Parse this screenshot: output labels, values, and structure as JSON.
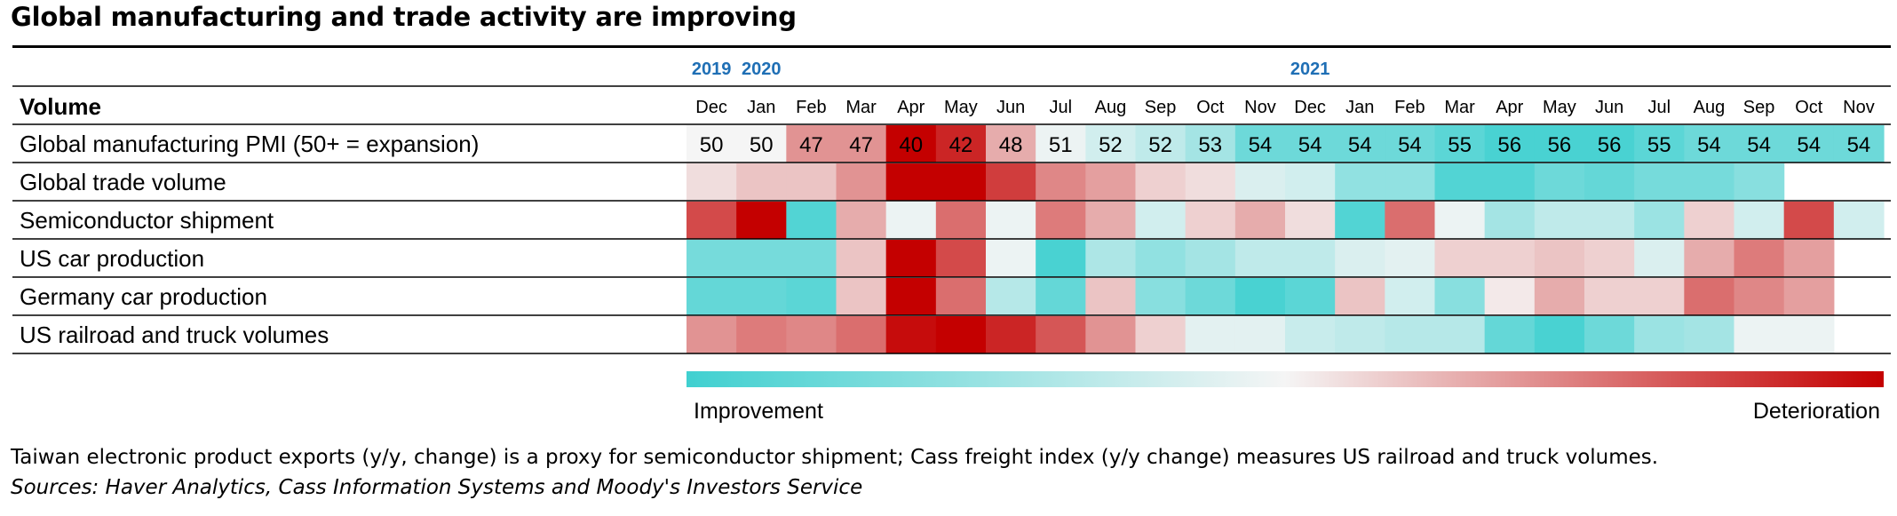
{
  "title": "Global manufacturing and trade activity are improving",
  "note": "Taiwan electronic product exports (y/y, change) is a proxy for semiconductor shipment; Cass freight index (y/y change) measures US railroad and truck volumes.",
  "sources": "Sources: Haver Analytics, Cass Information Systems and Moody's Investors Service",
  "colors": {
    "improvement": "#40d0d0",
    "neutral": "#f5f5f5",
    "deterioration": "#c40000",
    "rule": "#000000",
    "year_label": "#1f6fb5"
  },
  "chart_data": {
    "type": "heatmap",
    "row_header": "Volume",
    "years": [
      {
        "label": "2019",
        "start_index": 0
      },
      {
        "label": "2020",
        "start_index": 1
      },
      {
        "label": "2021",
        "start_index": 12
      }
    ],
    "months": [
      "Dec",
      "Jan",
      "Feb",
      "Mar",
      "Apr",
      "May",
      "Jun",
      "Jul",
      "Aug",
      "Sep",
      "Oct",
      "Nov",
      "Dec",
      "Jan",
      "Feb",
      "Mar",
      "Apr",
      "May",
      "Jun",
      "Jul",
      "Aug",
      "Sep",
      "Oct",
      "Nov"
    ],
    "scale_note": "score from -1 (improvement) to +1 (deterioration)",
    "rows": [
      {
        "label": "Global manufacturing PMI (50+ = expansion)",
        "printed": [
          "50",
          "50",
          "47",
          "47",
          "40",
          "42",
          "48",
          "51",
          "52",
          "52",
          "53",
          "54",
          "54",
          "54",
          "54",
          "55",
          "56",
          "56",
          "56",
          "55",
          "54",
          "54",
          "54",
          "54"
        ],
        "score": [
          0,
          0,
          0.4,
          0.4,
          1.0,
          0.85,
          0.3,
          -0.05,
          -0.2,
          -0.3,
          -0.45,
          -0.75,
          -0.75,
          -0.75,
          -0.75,
          -0.85,
          -0.95,
          -0.95,
          -0.95,
          -0.85,
          -0.75,
          -0.75,
          -0.75,
          -0.75
        ]
      },
      {
        "label": "Global trade volume",
        "score": [
          0.1,
          0.2,
          0.2,
          0.4,
          1.0,
          1.0,
          0.75,
          0.45,
          0.35,
          0.15,
          0.1,
          -0.15,
          -0.2,
          -0.55,
          -0.55,
          -0.9,
          -0.9,
          -0.75,
          -0.8,
          -0.7,
          -0.7,
          -0.6,
          null,
          null
        ]
      },
      {
        "label": "Semiconductor shipment",
        "score": [
          0.7,
          1.0,
          -0.9,
          0.3,
          -0.05,
          0.55,
          -0.05,
          0.5,
          0.3,
          -0.2,
          0.15,
          0.3,
          0.1,
          -0.9,
          0.55,
          -0.05,
          -0.45,
          -0.3,
          -0.3,
          -0.5,
          0.15,
          -0.2,
          0.7,
          -0.2
        ]
      },
      {
        "label": "US car production",
        "score": [
          -0.7,
          -0.7,
          -0.7,
          0.2,
          1.0,
          0.7,
          -0.05,
          -0.95,
          -0.4,
          -0.55,
          -0.45,
          -0.3,
          -0.3,
          -0.15,
          -0.1,
          0.15,
          0.15,
          0.2,
          0.15,
          -0.15,
          0.3,
          0.5,
          0.35,
          null
        ]
      },
      {
        "label": "Germany car production",
        "score": [
          -0.8,
          -0.8,
          -0.85,
          0.2,
          1.0,
          0.55,
          -0.35,
          -0.8,
          0.2,
          -0.6,
          -0.75,
          -0.95,
          -0.85,
          0.2,
          -0.2,
          -0.6,
          0.05,
          0.3,
          0.15,
          0.15,
          0.55,
          0.45,
          0.35,
          null
        ]
      },
      {
        "label": "US railroad and truck volumes",
        "score": [
          0.4,
          0.5,
          0.45,
          0.55,
          0.95,
          1.0,
          0.85,
          0.65,
          0.4,
          0.15,
          -0.1,
          -0.1,
          -0.25,
          -0.3,
          -0.35,
          -0.35,
          -0.8,
          -0.95,
          -0.75,
          -0.5,
          -0.45,
          -0.05,
          -0.05,
          null
        ]
      }
    ],
    "legend": {
      "left_label": "Improvement",
      "right_label": "Deterioration"
    }
  }
}
